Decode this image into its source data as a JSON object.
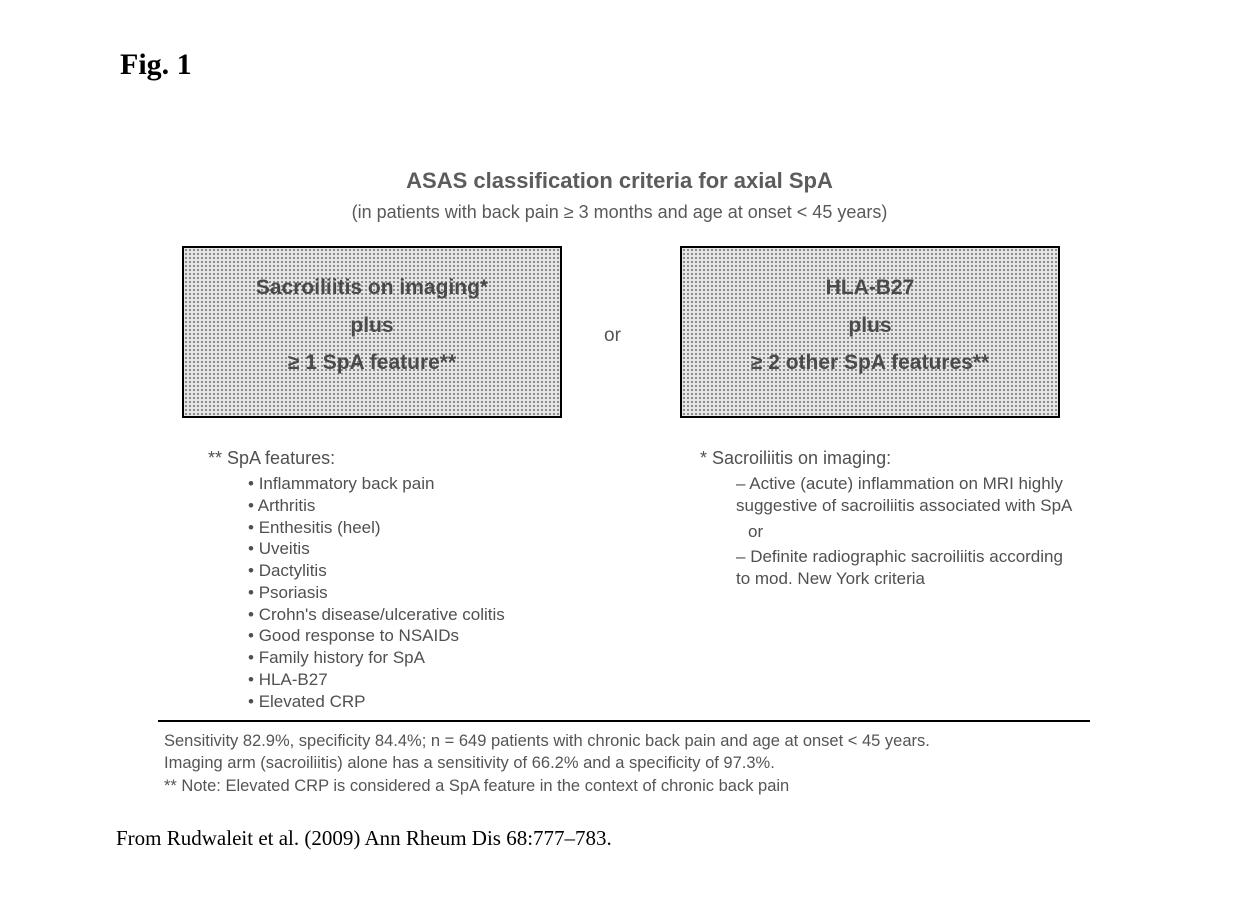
{
  "figLabel": "Fig. 1",
  "title": "ASAS classification criteria for axial SpA",
  "subtitle": "(in patients with back pain ≥ 3 months and age at onset < 45 years)",
  "orWord": "or",
  "leftBox": {
    "line1": "Sacroiliitis on imaging*",
    "line2": "plus",
    "line3": "≥ 1 SpA feature**"
  },
  "rightBox": {
    "line1": "HLA-B27",
    "line2": "plus",
    "line3": "≥ 2 other SpA features**"
  },
  "featuresHead": "** SpA features:",
  "features": [
    "Inflammatory back pain",
    "Arthritis",
    "Enthesitis (heel)",
    "Uveitis",
    "Dactylitis",
    "Psoriasis",
    "Crohn's disease/ulcerative colitis",
    "Good response to NSAIDs",
    "Family history for SpA",
    "HLA-B27",
    "Elevated CRP"
  ],
  "imagingHead": "* Sacroiliitis on imaging:",
  "imaging1": "Active (acute) inflammation on MRI highly suggestive of sacroiliitis associated with SpA",
  "imagingOr": "or",
  "imaging2": "Definite radiographic sacroiliitis according to mod. New York criteria",
  "footerLine1": "Sensitivity 82.9%, specificity 84.4%; n = 649 patients with chronic back pain and age at onset < 45 years.",
  "footerLine2": "Imaging arm (sacroiliitis) alone has a sensitivity of 66.2% and a specificity of 97.3%.",
  "footerLine3": "** Note: Elevated CRP is considered a SpA feature in the context of chronic back pain",
  "citation": "From Rudwaleit et al. (2009) Ann Rheum Dis 68:777–783."
}
